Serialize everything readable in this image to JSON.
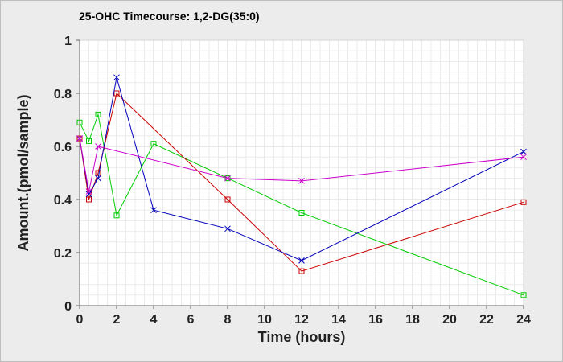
{
  "chart_data": {
    "type": "line",
    "title": "25-OHC Timecourse: 1,2-DG(35:0)",
    "xlabel": "Time (hours)",
    "ylabel": "Amount.(pmol/sample)",
    "xlim": [
      0,
      24
    ],
    "ylim": [
      0,
      1
    ],
    "x_ticks": [
      0,
      2,
      4,
      6,
      8,
      10,
      12,
      14,
      16,
      18,
      20,
      22,
      24
    ],
    "y_ticks": [
      0,
      0.2,
      0.4,
      0.6,
      0.8,
      1
    ],
    "y_tick_labels": [
      "0",
      "0.2",
      "0.4",
      "0.6",
      "0.8",
      "1"
    ],
    "grid": true,
    "series": [
      {
        "color": "#00cc00",
        "marker": "square",
        "x": [
          0,
          0.5,
          1,
          2,
          4,
          8,
          12,
          24
        ],
        "y": [
          0.69,
          0.62,
          0.72,
          0.34,
          0.61,
          0.48,
          0.35,
          0.04
        ]
      },
      {
        "color": "#cc0000",
        "marker": "square",
        "x": [
          0,
          0.5,
          1,
          2,
          8,
          12,
          24
        ],
        "y": [
          0.63,
          0.4,
          0.5,
          0.8,
          0.4,
          0.13,
          0.39
        ]
      },
      {
        "color": "#0000bb",
        "marker": "x",
        "x": [
          0,
          0.5,
          1,
          2,
          4,
          8,
          12,
          24
        ],
        "y": [
          0.63,
          0.42,
          0.48,
          0.86,
          0.36,
          0.29,
          0.17,
          0.58
        ]
      },
      {
        "color": "#cc00cc",
        "marker": "x",
        "x": [
          0,
          0.5,
          1,
          8,
          12,
          24
        ],
        "y": [
          0.63,
          0.43,
          0.6,
          0.48,
          0.47,
          0.56
        ]
      }
    ]
  }
}
